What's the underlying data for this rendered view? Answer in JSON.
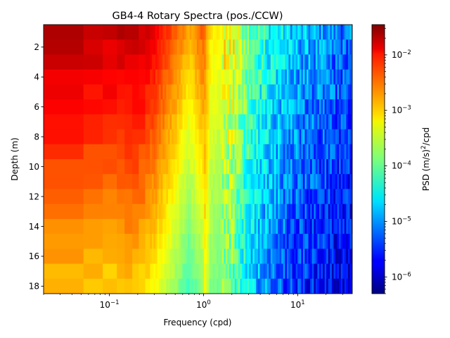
{
  "chart_data": {
    "type": "heatmap",
    "title": "GB4-4 Rotary Spectra (pos./CCW)",
    "xlabel": "Frequency (cpd)",
    "ylabel": "Depth (m)",
    "x_scale": "log",
    "xlim": [
      0.02,
      38
    ],
    "x_ticks": [
      {
        "value": 0.1,
        "base": "10",
        "exp": "−1"
      },
      {
        "value": 1,
        "base": "10",
        "exp": "0"
      },
      {
        "value": 10,
        "base": "10",
        "exp": "1"
      }
    ],
    "ylim": [
      18.5,
      0.5
    ],
    "y_ticks": [
      {
        "value": 2,
        "label": "2"
      },
      {
        "value": 4,
        "label": "4"
      },
      {
        "value": 6,
        "label": "6"
      },
      {
        "value": 8,
        "label": "8"
      },
      {
        "value": 10,
        "label": "10"
      },
      {
        "value": 12,
        "label": "12"
      },
      {
        "value": 14,
        "label": "14"
      },
      {
        "value": 16,
        "label": "16"
      },
      {
        "value": 18,
        "label": "18"
      }
    ],
    "colorbar": {
      "label_prefix": "PSD (m/s)",
      "label_sup": "2",
      "label_suffix": "/cpd",
      "scale": "log",
      "colormap": "jet",
      "range": [
        5e-07,
        0.035
      ],
      "ticks": [
        {
          "value": 1e-06,
          "base": "10",
          "exp": "−6"
        },
        {
          "value": 1e-05,
          "base": "10",
          "exp": "−5"
        },
        {
          "value": 0.0001,
          "base": "10",
          "exp": "−4"
        },
        {
          "value": 0.001,
          "base": "10",
          "exp": "−3"
        },
        {
          "value": 0.01,
          "base": "10",
          "exp": "−2"
        }
      ]
    },
    "depths_m": [
      1,
      2,
      3,
      4,
      5,
      6,
      7,
      8,
      9,
      10,
      11,
      12,
      13,
      14,
      15,
      16,
      17,
      18
    ],
    "spectrum_profile": [
      {
        "freq_cpd": 0.03,
        "log10_psd": -1.7
      },
      {
        "freq_cpd": 0.1,
        "log10_psd": -1.8
      },
      {
        "freq_cpd": 0.2,
        "log10_psd": -1.75
      },
      {
        "freq_cpd": 0.3,
        "log10_psd": -2.0
      },
      {
        "freq_cpd": 0.5,
        "log10_psd": -2.5
      },
      {
        "freq_cpd": 0.7,
        "log10_psd": -2.9
      },
      {
        "freq_cpd": 1.0,
        "log10_psd": -2.5
      },
      {
        "freq_cpd": 1.2,
        "log10_psd": -3.2
      },
      {
        "freq_cpd": 2.0,
        "log10_psd": -3.3
      },
      {
        "freq_cpd": 3.0,
        "log10_psd": -3.9
      },
      {
        "freq_cpd": 5.0,
        "log10_psd": -4.4
      },
      {
        "freq_cpd": 10.0,
        "log10_psd": -4.8
      },
      {
        "freq_cpd": 20.0,
        "log10_psd": -5.0
      },
      {
        "freq_cpd": 38.0,
        "log10_psd": -5.2
      }
    ],
    "depth_attenuation_log10_per_m": 0.055
  }
}
